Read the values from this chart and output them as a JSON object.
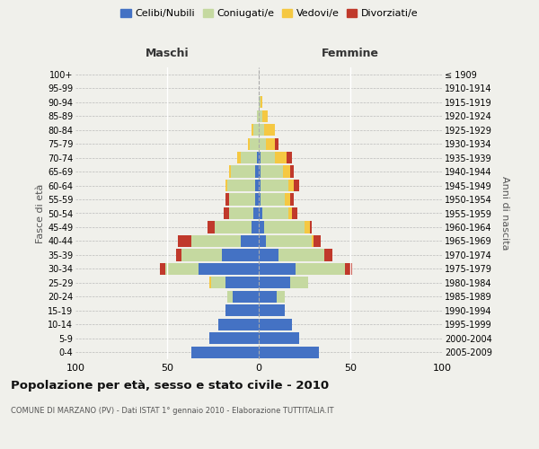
{
  "age_groups": [
    "0-4",
    "5-9",
    "10-14",
    "15-19",
    "20-24",
    "25-29",
    "30-34",
    "35-39",
    "40-44",
    "45-49",
    "50-54",
    "55-59",
    "60-64",
    "65-69",
    "70-74",
    "75-79",
    "80-84",
    "85-89",
    "90-94",
    "95-99",
    "100+"
  ],
  "birth_years": [
    "2005-2009",
    "2000-2004",
    "1995-1999",
    "1990-1994",
    "1985-1989",
    "1980-1984",
    "1975-1979",
    "1970-1974",
    "1965-1969",
    "1960-1964",
    "1955-1959",
    "1950-1954",
    "1945-1949",
    "1940-1944",
    "1935-1939",
    "1930-1934",
    "1925-1929",
    "1920-1924",
    "1915-1919",
    "1910-1914",
    "≤ 1909"
  ],
  "males": {
    "celibi": [
      37,
      27,
      22,
      18,
      14,
      18,
      33,
      20,
      10,
      4,
      3,
      2,
      2,
      2,
      1,
      0,
      0,
      0,
      0,
      0,
      0
    ],
    "coniugati": [
      0,
      0,
      0,
      0,
      3,
      8,
      18,
      22,
      27,
      20,
      13,
      14,
      15,
      13,
      9,
      5,
      3,
      1,
      0,
      0,
      0
    ],
    "vedovi": [
      0,
      0,
      0,
      0,
      0,
      1,
      0,
      0,
      0,
      0,
      0,
      0,
      1,
      1,
      2,
      1,
      1,
      0,
      0,
      0,
      0
    ],
    "divorziati": [
      0,
      0,
      0,
      0,
      0,
      0,
      3,
      3,
      7,
      4,
      3,
      2,
      0,
      0,
      0,
      0,
      0,
      0,
      0,
      0,
      0
    ]
  },
  "females": {
    "nubili": [
      33,
      22,
      18,
      14,
      10,
      17,
      20,
      11,
      4,
      3,
      2,
      1,
      1,
      1,
      1,
      0,
      0,
      0,
      0,
      0,
      0
    ],
    "coniugate": [
      0,
      0,
      0,
      0,
      4,
      10,
      27,
      25,
      25,
      22,
      14,
      13,
      15,
      12,
      8,
      4,
      3,
      2,
      1,
      0,
      0
    ],
    "vedove": [
      0,
      0,
      0,
      0,
      0,
      0,
      0,
      0,
      1,
      3,
      2,
      3,
      3,
      4,
      6,
      5,
      6,
      3,
      1,
      0,
      0
    ],
    "divorziate": [
      0,
      0,
      0,
      0,
      0,
      0,
      4,
      4,
      4,
      1,
      3,
      2,
      3,
      2,
      3,
      2,
      0,
      0,
      0,
      0,
      0
    ]
  },
  "colors": {
    "celibi": "#4472c4",
    "coniugati": "#c5d9a0",
    "vedovi": "#f5c842",
    "divorziati": "#c0392b"
  },
  "xlim": 100,
  "title": "Popolazione per età, sesso e stato civile - 2010",
  "subtitle": "COMUNE DI MARZANO (PV) - Dati ISTAT 1° gennaio 2010 - Elaborazione TUTTITALIA.IT",
  "ylabel_left": "Fasce di età",
  "ylabel_right": "Anni di nascita",
  "header_left": "Maschi",
  "header_right": "Femmine",
  "legend_labels": [
    "Celibi/Nubili",
    "Coniugati/e",
    "Vedovi/e",
    "Divorziati/e"
  ],
  "bg_color": "#f0f0eb",
  "bar_height": 0.85
}
